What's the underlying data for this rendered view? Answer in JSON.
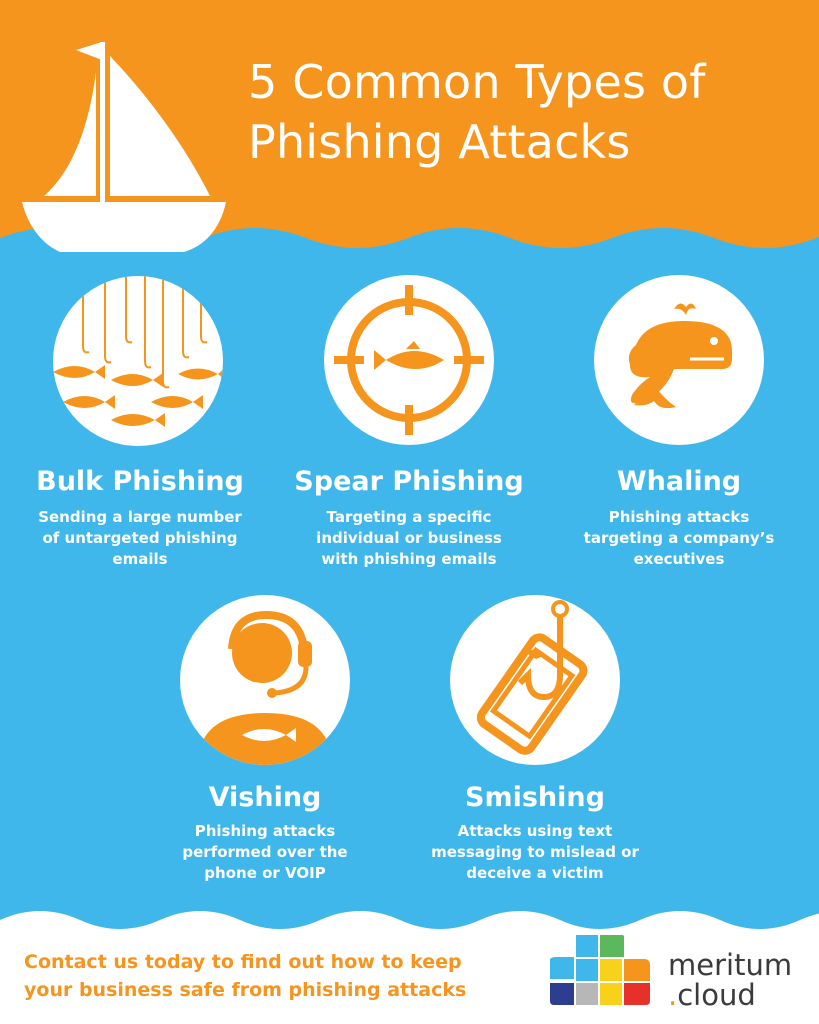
{
  "title": {
    "line1": "5 Common Types of",
    "line2": "Phishing Attacks"
  },
  "colors": {
    "orange": "#f5951e",
    "blue": "#3fb7ea",
    "white": "#ffffff",
    "dark": "#3b3b3b"
  },
  "cards": [
    {
      "icon": "fish-hooks-icon",
      "title": "Bulk Phishing",
      "description": "Sending a large number of untargeted phishing emails"
    },
    {
      "icon": "crosshair-fish-icon",
      "title": "Spear Phishing",
      "description": "Targeting a specific individual or business with phishing emails"
    },
    {
      "icon": "whale-icon",
      "title": "Whaling",
      "description": "Phishing attacks targeting a company’s executives"
    },
    {
      "icon": "headset-person-icon",
      "title": "Vishing",
      "description": "Phishing attacks performed over the phone or VOIP"
    },
    {
      "icon": "phone-hook-icon",
      "title": "Smishing",
      "description": "Attacks using text messaging to mislead or deceive a victim"
    }
  ],
  "footer": {
    "cta_line1": "Contact us today to find out how to keep",
    "cta_line2": "your business safe from phishing attacks",
    "logo_line1": "meritum",
    "logo_dot": ".",
    "logo_line2": "cloud",
    "logo_icon": "cloud-grid-icon"
  }
}
